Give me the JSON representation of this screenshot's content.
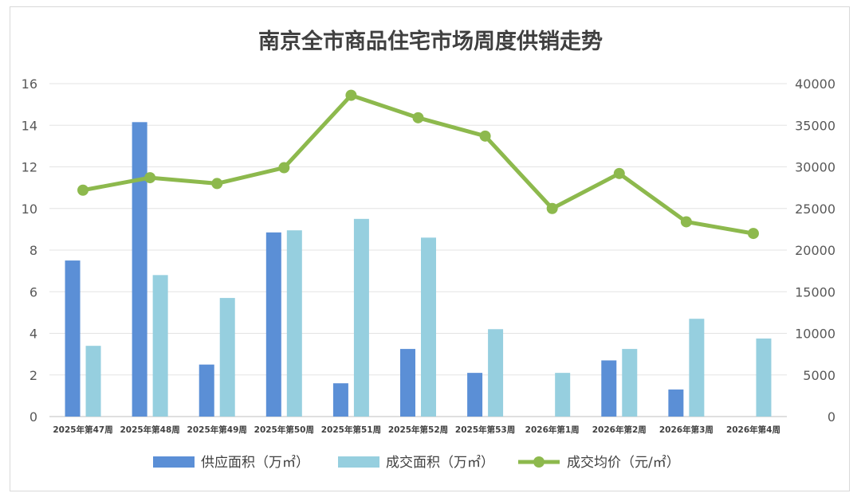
{
  "chart_data": {
    "type": "bar+line",
    "title": "南京全市商品住宅市场周度供销走势",
    "categories": [
      "2025年第47周",
      "2025年第48周",
      "2025年第49周",
      "2025年第50周",
      "2025年第51周",
      "2025年第52周",
      "2025年第53周",
      "2026年第1周",
      "2026年第2周",
      "2026年第3周",
      "2026年第4周"
    ],
    "left_axis": {
      "min": 0,
      "max": 16,
      "ticks": [
        "0",
        "2",
        "4",
        "6",
        "8",
        "10",
        "12",
        "14",
        "16"
      ]
    },
    "right_axis": {
      "min": 0,
      "max": 40000,
      "ticks": [
        "0",
        "5000",
        "10000",
        "15000",
        "20000",
        "25000",
        "30000",
        "35000",
        "40000"
      ]
    },
    "grid": true,
    "legend_position": "bottom",
    "series": [
      {
        "name": "供应面积（万㎡）",
        "type": "bar",
        "axis": "left",
        "color": "#5B8FD6",
        "values": [
          7.5,
          14.15,
          2.5,
          8.85,
          1.6,
          3.25,
          2.1,
          0,
          2.7,
          1.3,
          0
        ]
      },
      {
        "name": "成交面积（万㎡）",
        "type": "bar",
        "axis": "left",
        "color": "#96CFDF",
        "values": [
          3.4,
          6.8,
          5.7,
          8.95,
          9.5,
          8.6,
          4.2,
          2.1,
          3.25,
          4.7,
          3.75
        ]
      },
      {
        "name": "成交均价（元/㎡）",
        "type": "line",
        "axis": "right",
        "color": "#8DB94D",
        "values": [
          27200,
          28700,
          28000,
          29900,
          38600,
          35900,
          33700,
          25000,
          29200,
          23400,
          22000
        ]
      }
    ]
  }
}
